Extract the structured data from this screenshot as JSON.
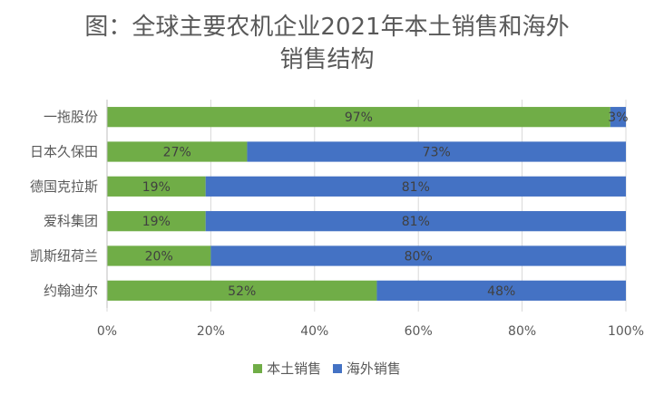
{
  "chart_data": {
    "type": "bar",
    "orientation": "horizontal",
    "stacked": true,
    "title_line1": "图：全球主要农机企业2021年本土销售和海外",
    "title_line2": "销售结构",
    "categories": [
      "一拖股份",
      "日本久保田",
      "德国克拉斯",
      "爱科集团",
      "凯斯纽荷兰",
      "约翰迪尔"
    ],
    "series": [
      {
        "name": "本土销售",
        "color": "#70ad47",
        "values": [
          97,
          27,
          19,
          19,
          20,
          52
        ],
        "labels": [
          "97%",
          "27%",
          "19%",
          "19%",
          "20%",
          "52%"
        ]
      },
      {
        "name": "海外销售",
        "color": "#4472c4",
        "values": [
          3,
          73,
          81,
          81,
          80,
          48
        ],
        "labels": [
          "3%",
          "73%",
          "81%",
          "81%",
          "80%",
          "48%"
        ]
      }
    ],
    "xlim": [
      0,
      100
    ],
    "xticks": [
      "0%",
      "20%",
      "40%",
      "60%",
      "80%",
      "100%"
    ],
    "grid": true,
    "legend_position": "bottom"
  }
}
